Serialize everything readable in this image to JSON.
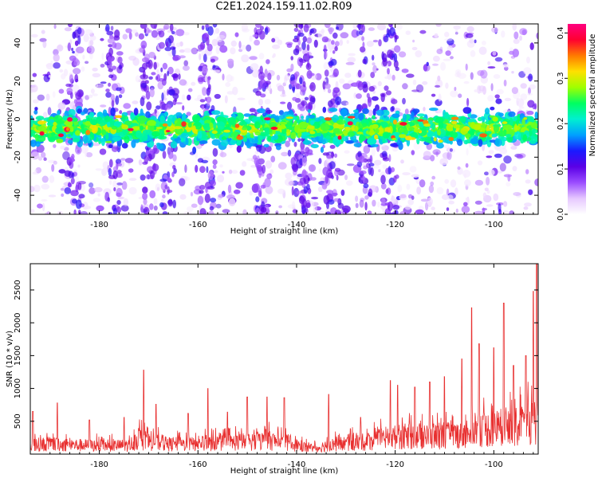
{
  "title": "C2E1.2024.159.11.02.R09",
  "chart_data": [
    {
      "type": "heatmap",
      "xlabel": "Height of straight line (km)",
      "ylabel": "Frequency (Hz)",
      "xlim": [
        -194,
        -91
      ],
      "ylim": [
        -50,
        50
      ],
      "xticks": [
        -180,
        -160,
        -140,
        -120,
        -100
      ],
      "yticks": [
        -40,
        -20,
        0,
        20,
        40
      ],
      "colorbar": {
        "label": "Normalized spectral amplitude",
        "range": [
          0.0,
          0.42
        ],
        "ticks": [
          "0.0",
          "0.1",
          "0.2",
          "0.3",
          "0.4"
        ],
        "colormap": [
          "#ffffff",
          "#e6c8ff",
          "#9b4dff",
          "#5a00e6",
          "#1a1aff",
          "#00a0ff",
          "#00f0d0",
          "#00ff60",
          "#a0ff00",
          "#ffe000",
          "#ff7a00",
          "#ff0030",
          "#ff0080"
        ]
      },
      "band_center_hz": -5,
      "band_halfwidth_hz": 12,
      "grid": false
    },
    {
      "type": "line",
      "xlabel": "Height of straight line (km)",
      "ylabel": "SNR (10 * v/v)",
      "xlim": [
        -194,
        -91
      ],
      "ylim": [
        0,
        2900
      ],
      "xticks": [
        -180,
        -160,
        -140,
        -120,
        -100
      ],
      "yticks": [
        500,
        1000,
        1500,
        2000,
        2500
      ],
      "color": "#e83030",
      "grid": false,
      "envelope": {
        "x": [
          -194,
          -190,
          -186,
          -182,
          -178,
          -174,
          -172,
          -170,
          -166,
          -162,
          -158,
          -154,
          -150,
          -146,
          -142,
          -138,
          -136,
          -134,
          -130,
          -126,
          -122,
          -118,
          -114,
          -110,
          -106,
          -104,
          -102,
          -100,
          -98,
          -96,
          -94,
          -92,
          -91
        ],
        "y": [
          250,
          260,
          240,
          230,
          220,
          230,
          400,
          330,
          260,
          260,
          280,
          300,
          330,
          360,
          300,
          180,
          150,
          230,
          280,
          320,
          420,
          470,
          450,
          480,
          520,
          700,
          660,
          650,
          720,
          720,
          750,
          850,
          900
        ]
      },
      "peaks": [
        {
          "x": -193.5,
          "y": 650
        },
        {
          "x": -188.5,
          "y": 780
        },
        {
          "x": -182.0,
          "y": 520
        },
        {
          "x": -175.0,
          "y": 560
        },
        {
          "x": -171.0,
          "y": 1280
        },
        {
          "x": -168.5,
          "y": 760
        },
        {
          "x": -162.0,
          "y": 620
        },
        {
          "x": -158.0,
          "y": 1000
        },
        {
          "x": -154.0,
          "y": 640
        },
        {
          "x": -150.0,
          "y": 870
        },
        {
          "x": -146.0,
          "y": 870
        },
        {
          "x": -142.5,
          "y": 860
        },
        {
          "x": -133.5,
          "y": 910
        },
        {
          "x": -127.0,
          "y": 560
        },
        {
          "x": -121.0,
          "y": 1120
        },
        {
          "x": -119.5,
          "y": 1050
        },
        {
          "x": -116.0,
          "y": 1020
        },
        {
          "x": -113.0,
          "y": 1100
        },
        {
          "x": -110.0,
          "y": 1180
        },
        {
          "x": -106.5,
          "y": 1450
        },
        {
          "x": -104.5,
          "y": 2230
        },
        {
          "x": -103.0,
          "y": 1680
        },
        {
          "x": -100.0,
          "y": 1620
        },
        {
          "x": -98.0,
          "y": 2300
        },
        {
          "x": -96.0,
          "y": 1350
        },
        {
          "x": -93.5,
          "y": 1500
        },
        {
          "x": -92.0,
          "y": 2480
        },
        {
          "x": -91.3,
          "y": 2900
        }
      ]
    }
  ]
}
